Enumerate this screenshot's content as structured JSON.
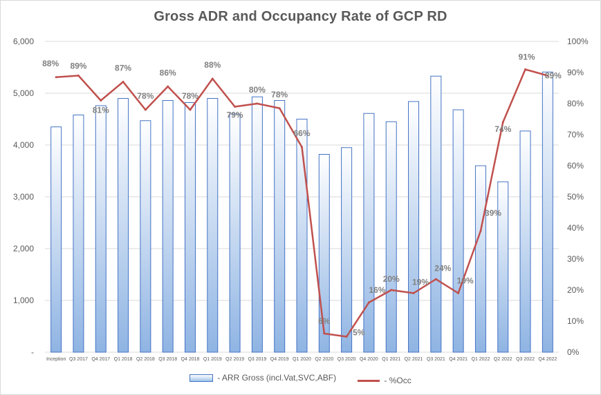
{
  "chart_data": {
    "type": "bar+line",
    "title": "Gross ADR and Occupancy Rate of GCP RD",
    "categories": [
      "Inception",
      "Q3 2017",
      "Q4 2017",
      "Q1 2018",
      "Q2 2018",
      "Q3 2018",
      "Q4 2018",
      "Q1 2019",
      "Q2 2019",
      "Q3 2019",
      "Q4 2019",
      "Q1 2020",
      "Q2 2020",
      "Q3 2020",
      "Q4 2020",
      "Q1 2021",
      "Q2 2021",
      "Q3 2021",
      "Q4 2021",
      "Q1 2022",
      "Q2 2022",
      "Q3 2022",
      "Q4 2022"
    ],
    "series": [
      {
        "name": "- ARR Gross (incl.Vat,SVC,ABF)",
        "type": "bar",
        "axis": "left",
        "values": [
          4350,
          4580,
          4760,
          4900,
          4470,
          4860,
          4820,
          4900,
          4600,
          4930,
          4860,
          4500,
          3820,
          3950,
          4610,
          4450,
          4840,
          5330,
          4680,
          3600,
          3290,
          4270,
          5410
        ]
      },
      {
        "name": "- %Occ",
        "type": "line",
        "axis": "right",
        "color": "#c0504d",
        "values": [
          88.5,
          89,
          81,
          87,
          78,
          85.5,
          78,
          88,
          79,
          80,
          78.5,
          66,
          6,
          5,
          16,
          20,
          19,
          23.5,
          19,
          39,
          74,
          91,
          89
        ]
      }
    ],
    "data_labels": [
      "88%",
      "89%",
      "81%",
      "87%",
      "78%",
      "86%",
      "78%",
      "88%",
      "79%",
      "80%",
      "78%",
      "66%",
      "6%",
      "- 5%",
      "16%",
      "20%",
      "19%",
      "24%",
      "19%",
      "39%",
      "74%",
      "91%",
      "89%"
    ],
    "y_left": {
      "min": 0,
      "max": 6000,
      "step": 1000,
      "ticks": [
        "-",
        "1,000",
        "2,000",
        "3,000",
        "4,000",
        "5,000",
        "6,000"
      ]
    },
    "y_right": {
      "min": 0,
      "max": 100,
      "step": 10,
      "ticks": [
        "0%",
        "10%",
        "20%",
        "30%",
        "40%",
        "50%",
        "60%",
        "70%",
        "80%",
        "90%",
        "100%"
      ]
    },
    "grid": true,
    "legend": "bottom"
  }
}
